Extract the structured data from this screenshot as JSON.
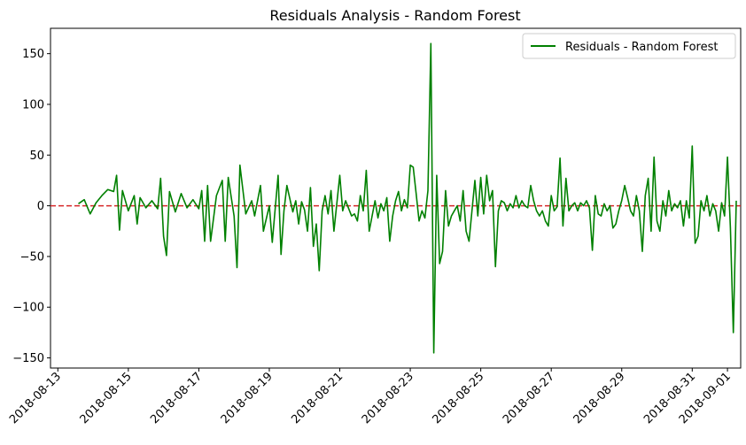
{
  "chart_data": {
    "type": "line",
    "title": "Residuals Analysis - Random Forest",
    "xlabel": "",
    "ylabel": "",
    "x_ticks": [
      "2018-08-13",
      "2018-08-15",
      "2018-08-17",
      "2018-08-19",
      "2018-08-21",
      "2018-08-23",
      "2018-08-25",
      "2018-08-27",
      "2018-08-29",
      "2018-08-31",
      "2018-09-01"
    ],
    "y_ticks": [
      150,
      100,
      50,
      0,
      -50,
      -100,
      -150
    ],
    "xlim": [
      "2018-08-12 19:00",
      "2018-09-01 09:00"
    ],
    "ylim": [
      -160,
      175
    ],
    "legend": {
      "position": "top-right",
      "label": "Residuals - Random Forest"
    },
    "reference_line": {
      "y": 0,
      "color": "#d62728",
      "style": "dashed"
    },
    "colors": {
      "series": "#008000",
      "reference": "#d62728"
    },
    "grid": false,
    "series": [
      {
        "name": "Residuals - Random Forest",
        "points": [
          [
            "2018-08-13 14:00",
            2
          ],
          [
            "2018-08-13 18:00",
            6
          ],
          [
            "2018-08-13 22:00",
            -8
          ],
          [
            "2018-08-14 02:00",
            3
          ],
          [
            "2018-08-14 06:00",
            10
          ],
          [
            "2018-08-14 10:00",
            16
          ],
          [
            "2018-08-14 14:00",
            14
          ],
          [
            "2018-08-14 16:00",
            30
          ],
          [
            "2018-08-14 18:00",
            -24
          ],
          [
            "2018-08-14 20:00",
            15
          ],
          [
            "2018-08-15 00:00",
            -5
          ],
          [
            "2018-08-15 04:00",
            10
          ],
          [
            "2018-08-15 06:00",
            -18
          ],
          [
            "2018-08-15 08:00",
            8
          ],
          [
            "2018-08-15 12:00",
            -2
          ],
          [
            "2018-08-15 16:00",
            5
          ],
          [
            "2018-08-15 20:00",
            -3
          ],
          [
            "2018-08-15 22:00",
            27
          ],
          [
            "2018-08-16 00:00",
            -30
          ],
          [
            "2018-08-16 02:00",
            -49
          ],
          [
            "2018-08-16 04:00",
            14
          ],
          [
            "2018-08-16 08:00",
            -6
          ],
          [
            "2018-08-16 12:00",
            12
          ],
          [
            "2018-08-16 16:00",
            -2
          ],
          [
            "2018-08-16 20:00",
            6
          ],
          [
            "2018-08-17 00:00",
            -3
          ],
          [
            "2018-08-17 02:00",
            15
          ],
          [
            "2018-08-17 04:00",
            -35
          ],
          [
            "2018-08-17 06:00",
            20
          ],
          [
            "2018-08-17 08:00",
            -35
          ],
          [
            "2018-08-17 12:00",
            10
          ],
          [
            "2018-08-17 16:00",
            25
          ],
          [
            "2018-08-17 18:00",
            -35
          ],
          [
            "2018-08-17 20:00",
            28
          ],
          [
            "2018-08-18 00:00",
            -10
          ],
          [
            "2018-08-18 02:00",
            -61
          ],
          [
            "2018-08-18 04:00",
            40
          ],
          [
            "2018-08-18 08:00",
            -8
          ],
          [
            "2018-08-18 12:00",
            5
          ],
          [
            "2018-08-18 14:00",
            -10
          ],
          [
            "2018-08-18 18:00",
            20
          ],
          [
            "2018-08-18 20:00",
            -25
          ],
          [
            "2018-08-19 00:00",
            0
          ],
          [
            "2018-08-19 02:00",
            -36
          ],
          [
            "2018-08-19 04:00",
            -3
          ],
          [
            "2018-08-19 06:00",
            30
          ],
          [
            "2018-08-19 08:00",
            -48
          ],
          [
            "2018-08-19 10:00",
            -5
          ],
          [
            "2018-08-19 12:00",
            20
          ],
          [
            "2018-08-19 16:00",
            -6
          ],
          [
            "2018-08-19 18:00",
            5
          ],
          [
            "2018-08-19 20:00",
            -18
          ],
          [
            "2018-08-19 22:00",
            4
          ],
          [
            "2018-08-20 00:00",
            -4
          ],
          [
            "2018-08-20 02:00",
            -25
          ],
          [
            "2018-08-20 04:00",
            18
          ],
          [
            "2018-08-20 06:00",
            -40
          ],
          [
            "2018-08-20 08:00",
            -18
          ],
          [
            "2018-08-20 10:00",
            -64
          ],
          [
            "2018-08-20 12:00",
            -5
          ],
          [
            "2018-08-20 14:00",
            10
          ],
          [
            "2018-08-20 16:00",
            -8
          ],
          [
            "2018-08-20 18:00",
            15
          ],
          [
            "2018-08-20 20:00",
            -25
          ],
          [
            "2018-08-21 00:00",
            30
          ],
          [
            "2018-08-21 02:00",
            -5
          ],
          [
            "2018-08-21 04:00",
            5
          ],
          [
            "2018-08-21 08:00",
            -10
          ],
          [
            "2018-08-21 10:00",
            -8
          ],
          [
            "2018-08-21 12:00",
            -15
          ],
          [
            "2018-08-21 14:00",
            10
          ],
          [
            "2018-08-21 16:00",
            -5
          ],
          [
            "2018-08-21 18:00",
            35
          ],
          [
            "2018-08-21 20:00",
            -25
          ],
          [
            "2018-08-22 00:00",
            5
          ],
          [
            "2018-08-22 02:00",
            -12
          ],
          [
            "2018-08-22 04:00",
            2
          ],
          [
            "2018-08-22 06:00",
            -5
          ],
          [
            "2018-08-22 08:00",
            8
          ],
          [
            "2018-08-22 10:00",
            -35
          ],
          [
            "2018-08-22 12:00",
            -10
          ],
          [
            "2018-08-22 14:00",
            5
          ],
          [
            "2018-08-22 16:00",
            14
          ],
          [
            "2018-08-22 18:00",
            -5
          ],
          [
            "2018-08-22 20:00",
            6
          ],
          [
            "2018-08-22 22:00",
            -2
          ],
          [
            "2018-08-23 00:00",
            40
          ],
          [
            "2018-08-23 02:00",
            38
          ],
          [
            "2018-08-23 04:00",
            12
          ],
          [
            "2018-08-23 06:00",
            -15
          ],
          [
            "2018-08-23 08:00",
            -5
          ],
          [
            "2018-08-23 10:00",
            -12
          ],
          [
            "2018-08-23 12:00",
            15
          ],
          [
            "2018-08-23 14:00",
            160
          ],
          [
            "2018-08-23 16:00",
            -145
          ],
          [
            "2018-08-23 18:00",
            30
          ],
          [
            "2018-08-23 20:00",
            -57
          ],
          [
            "2018-08-23 22:00",
            -45
          ],
          [
            "2018-08-24 00:00",
            15
          ],
          [
            "2018-08-24 02:00",
            -20
          ],
          [
            "2018-08-24 04:00",
            -10
          ],
          [
            "2018-08-24 06:00",
            -5
          ],
          [
            "2018-08-24 08:00",
            0
          ],
          [
            "2018-08-24 10:00",
            -15
          ],
          [
            "2018-08-24 12:00",
            15
          ],
          [
            "2018-08-24 14:00",
            -25
          ],
          [
            "2018-08-24 16:00",
            -35
          ],
          [
            "2018-08-24 18:00",
            -5
          ],
          [
            "2018-08-24 20:00",
            25
          ],
          [
            "2018-08-24 22:00",
            -10
          ],
          [
            "2018-08-25 00:00",
            28
          ],
          [
            "2018-08-25 02:00",
            -8
          ],
          [
            "2018-08-25 04:00",
            30
          ],
          [
            "2018-08-25 06:00",
            5
          ],
          [
            "2018-08-25 08:00",
            15
          ],
          [
            "2018-08-25 10:00",
            -60
          ],
          [
            "2018-08-25 12:00",
            -5
          ],
          [
            "2018-08-25 14:00",
            5
          ],
          [
            "2018-08-25 16:00",
            3
          ],
          [
            "2018-08-25 18:00",
            -5
          ],
          [
            "2018-08-25 20:00",
            2
          ],
          [
            "2018-08-25 22:00",
            -2
          ],
          [
            "2018-08-26 00:00",
            10
          ],
          [
            "2018-08-26 02:00",
            -2
          ],
          [
            "2018-08-26 04:00",
            5
          ],
          [
            "2018-08-26 06:00",
            0
          ],
          [
            "2018-08-26 08:00",
            -2
          ],
          [
            "2018-08-26 10:00",
            20
          ],
          [
            "2018-08-26 12:00",
            5
          ],
          [
            "2018-08-26 14:00",
            -5
          ],
          [
            "2018-08-26 16:00",
            -10
          ],
          [
            "2018-08-26 18:00",
            -5
          ],
          [
            "2018-08-26 20:00",
            -15
          ],
          [
            "2018-08-26 22:00",
            -20
          ],
          [
            "2018-08-27 00:00",
            10
          ],
          [
            "2018-08-27 02:00",
            -5
          ],
          [
            "2018-08-27 04:00",
            -1
          ],
          [
            "2018-08-27 06:00",
            47
          ],
          [
            "2018-08-27 08:00",
            -20
          ],
          [
            "2018-08-27 10:00",
            27
          ],
          [
            "2018-08-27 12:00",
            -5
          ],
          [
            "2018-08-27 14:00",
            0
          ],
          [
            "2018-08-27 16:00",
            3
          ],
          [
            "2018-08-27 18:00",
            -5
          ],
          [
            "2018-08-27 20:00",
            3
          ],
          [
            "2018-08-27 22:00",
            0
          ],
          [
            "2018-08-28 00:00",
            5
          ],
          [
            "2018-08-28 02:00",
            -2
          ],
          [
            "2018-08-28 04:00",
            -44
          ],
          [
            "2018-08-28 06:00",
            10
          ],
          [
            "2018-08-28 08:00",
            -8
          ],
          [
            "2018-08-28 10:00",
            -10
          ],
          [
            "2018-08-28 12:00",
            2
          ],
          [
            "2018-08-28 14:00",
            -5
          ],
          [
            "2018-08-28 16:00",
            0
          ],
          [
            "2018-08-28 18:00",
            -22
          ],
          [
            "2018-08-28 20:00",
            -18
          ],
          [
            "2018-08-28 22:00",
            -5
          ],
          [
            "2018-08-29 00:00",
            5
          ],
          [
            "2018-08-29 02:00",
            20
          ],
          [
            "2018-08-29 04:00",
            8
          ],
          [
            "2018-08-29 06:00",
            -5
          ],
          [
            "2018-08-29 08:00",
            -10
          ],
          [
            "2018-08-29 10:00",
            10
          ],
          [
            "2018-08-29 12:00",
            -5
          ],
          [
            "2018-08-29 14:00",
            -45
          ],
          [
            "2018-08-29 16:00",
            10
          ],
          [
            "2018-08-29 18:00",
            27
          ],
          [
            "2018-08-29 20:00",
            -25
          ],
          [
            "2018-08-29 22:00",
            48
          ],
          [
            "2018-08-30 00:00",
            -15
          ],
          [
            "2018-08-30 02:00",
            -25
          ],
          [
            "2018-08-30 04:00",
            5
          ],
          [
            "2018-08-30 06:00",
            -10
          ],
          [
            "2018-08-30 08:00",
            15
          ],
          [
            "2018-08-30 10:00",
            -5
          ],
          [
            "2018-08-30 12:00",
            2
          ],
          [
            "2018-08-30 14:00",
            -2
          ],
          [
            "2018-08-30 16:00",
            5
          ],
          [
            "2018-08-30 18:00",
            -20
          ],
          [
            "2018-08-30 20:00",
            5
          ],
          [
            "2018-08-30 22:00",
            -12
          ],
          [
            "2018-08-31 00:00",
            59
          ],
          [
            "2018-08-31 02:00",
            -37
          ],
          [
            "2018-08-31 04:00",
            -30
          ],
          [
            "2018-08-31 06:00",
            5
          ],
          [
            "2018-08-31 08:00",
            -5
          ],
          [
            "2018-08-31 10:00",
            10
          ],
          [
            "2018-08-31 12:00",
            -10
          ],
          [
            "2018-08-31 14:00",
            2
          ],
          [
            "2018-08-31 16:00",
            -5
          ],
          [
            "2018-08-31 18:00",
            -25
          ],
          [
            "2018-08-31 20:00",
            3
          ],
          [
            "2018-08-31 22:00",
            -10
          ],
          [
            "2018-09-01 00:00",
            48
          ],
          [
            "2018-09-01 02:00",
            -22
          ],
          [
            "2018-09-01 04:00",
            -125
          ],
          [
            "2018-09-01 06:00",
            5
          ]
        ]
      }
    ]
  }
}
